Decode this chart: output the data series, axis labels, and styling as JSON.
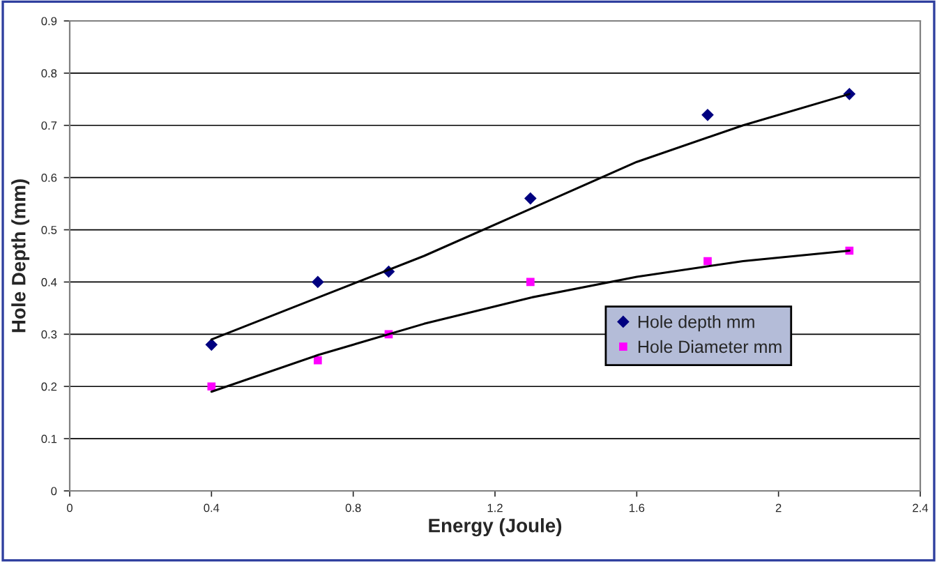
{
  "chart_data": {
    "type": "scatter",
    "xlabel": "Energy (Joule)",
    "ylabel": "Hole Depth (mm)",
    "xlim": [
      0,
      2.4
    ],
    "xticks": [
      0,
      0.4,
      0.8,
      1.2,
      1.6,
      2,
      2.4
    ],
    "ylim": [
      0,
      0.9
    ],
    "yticks": [
      0,
      0.1,
      0.2,
      0.3,
      0.4,
      0.5,
      0.6,
      0.7,
      0.8,
      0.9
    ],
    "grid": "y",
    "legend": "right",
    "series": [
      {
        "name": "Hole depth mm",
        "marker": "diamond",
        "color": "#000080",
        "x": [
          0.4,
          0.7,
          0.9,
          1.3,
          1.8,
          2.2
        ],
        "values": [
          0.28,
          0.4,
          0.42,
          0.56,
          0.72,
          0.76
        ]
      },
      {
        "name": "Hole Diameter mm",
        "marker": "square",
        "color": "#ff00ff",
        "x": [
          0.4,
          0.7,
          0.9,
          1.3,
          1.8,
          2.2
        ],
        "values": [
          0.2,
          0.25,
          0.3,
          0.4,
          0.44,
          0.46
        ]
      },
      {
        "type": "line",
        "color": "#000000",
        "x": [
          0.4,
          0.7,
          1.0,
          1.3,
          1.6,
          1.9,
          2.2
        ],
        "values": [
          0.29,
          0.37,
          0.45,
          0.54,
          0.63,
          0.7,
          0.76
        ]
      },
      {
        "type": "line",
        "color": "#000000",
        "x": [
          0.4,
          0.7,
          1.0,
          1.3,
          1.6,
          1.9,
          2.2
        ],
        "values": [
          0.19,
          0.26,
          0.32,
          0.37,
          0.41,
          0.44,
          0.46
        ]
      }
    ]
  }
}
